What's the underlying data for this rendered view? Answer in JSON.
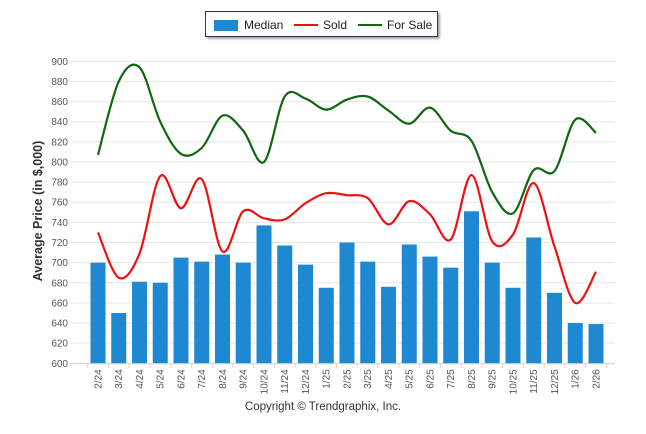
{
  "chart_data": {
    "type": "bar",
    "title": "",
    "xlabel": "",
    "ylabel": "Average Price (in $,000)",
    "ylim": [
      600,
      900
    ],
    "yticks": [
      600,
      620,
      640,
      660,
      680,
      700,
      720,
      740,
      760,
      780,
      800,
      820,
      840,
      860,
      880,
      900
    ],
    "grid": true,
    "legend_position": "top-center",
    "categories": [
      "2/24",
      "3/24",
      "4/24",
      "5/24",
      "6/24",
      "7/24",
      "8/24",
      "9/24",
      "10/24",
      "11/24",
      "12/24",
      "1/25",
      "2/25",
      "3/25",
      "4/25",
      "5/25",
      "6/25",
      "7/25",
      "8/25",
      "9/25",
      "10/25",
      "11/25",
      "12/25",
      "1/26",
      "2/26"
    ],
    "series": [
      {
        "name": "Median",
        "type": "bar",
        "color": "#1e88d2",
        "values": [
          700,
          650,
          681,
          680,
          705,
          701,
          708,
          700,
          737,
          717,
          698,
          675,
          720,
          701,
          676,
          718,
          706,
          695,
          751,
          700,
          675,
          725,
          670,
          640,
          639
        ]
      },
      {
        "name": "Sold",
        "type": "line",
        "color": "#ee1111",
        "values": [
          730,
          685,
          709,
          786,
          754,
          783,
          711,
          751,
          744,
          743,
          759,
          769,
          767,
          764,
          738,
          761,
          748,
          723,
          787,
          721,
          728,
          779,
          716,
          660,
          691
        ]
      },
      {
        "name": "For Sale",
        "type": "line",
        "color": "#116611",
        "values": [
          807,
          880,
          894,
          840,
          808,
          814,
          846,
          831,
          800,
          865,
          863,
          852,
          862,
          865,
          851,
          838,
          854,
          831,
          821,
          770,
          749,
          792,
          791,
          842,
          829
        ]
      }
    ]
  },
  "legend": {
    "items": [
      {
        "label": "Median",
        "color": "#1e88d2",
        "kind": "bar"
      },
      {
        "label": "Sold",
        "color": "#ee1111",
        "kind": "line"
      },
      {
        "label": "For Sale",
        "color": "#116611",
        "kind": "line"
      }
    ]
  },
  "footer": {
    "copyright": "Copyright © Trendgraphix, Inc."
  }
}
